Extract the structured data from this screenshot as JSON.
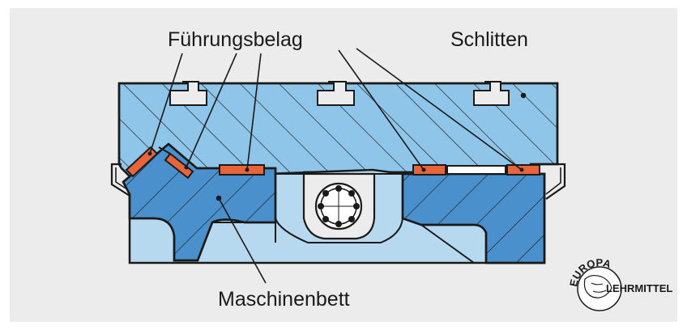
{
  "labels": {
    "fuehrungsbelag": "Führungsbelag",
    "schlitten": "Schlitten",
    "maschinenbett": "Maschinenbett"
  },
  "logo": {
    "top_text": "EUROPA",
    "side_text": "LEHRMITTEL"
  },
  "colors": {
    "background_panel": "#ececec",
    "slide_blue": "#8ec5e8",
    "bed_blue": "#4a90cc",
    "bed_light_blue": "#b7d9f0",
    "guide_lining_orange": "#e8643a",
    "outline": "#1a1a1a"
  }
}
